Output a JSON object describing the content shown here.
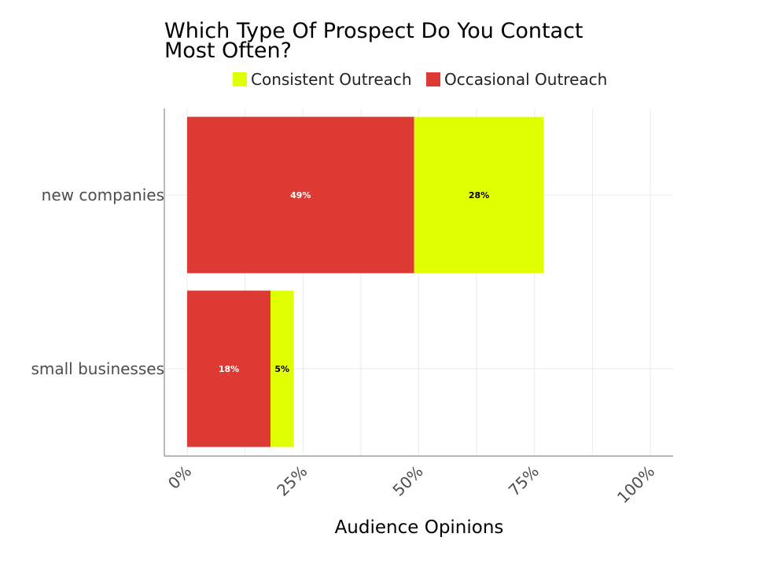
{
  "chart_data": {
    "type": "bar",
    "orientation": "horizontal",
    "stacked": true,
    "title": [
      "Which Type Of Prospect Do You Contact",
      "Most Often?"
    ],
    "xlabel": "Audience Opinions",
    "ylabel": "",
    "xlim": [
      0,
      105
    ],
    "x_ticks": [
      {
        "value": 0,
        "label": "0%"
      },
      {
        "value": 25,
        "label": "25%"
      },
      {
        "value": 50,
        "label": "50%"
      },
      {
        "value": 75,
        "label": "75%"
      },
      {
        "value": 100,
        "label": "100%"
      }
    ],
    "categories": [
      "new companies",
      "small businesses"
    ],
    "series": [
      {
        "name": "Occasional Outreach",
        "color": "#dc3a32",
        "label_color": "#ffffff",
        "values": [
          49,
          18
        ],
        "labels": [
          "49%",
          "18%"
        ]
      },
      {
        "name": "Consistent Outreach",
        "color": "#e0ff00",
        "label_color": "#000000",
        "values": [
          28,
          5
        ],
        "labels": [
          "28%",
          "5%"
        ]
      }
    ],
    "legend": {
      "position": "top",
      "entries": [
        {
          "name": "Consistent Outreach",
          "color": "#e0ff00"
        },
        {
          "name": "Occasional Outreach",
          "color": "#dc3a32"
        }
      ]
    },
    "grid": true
  }
}
